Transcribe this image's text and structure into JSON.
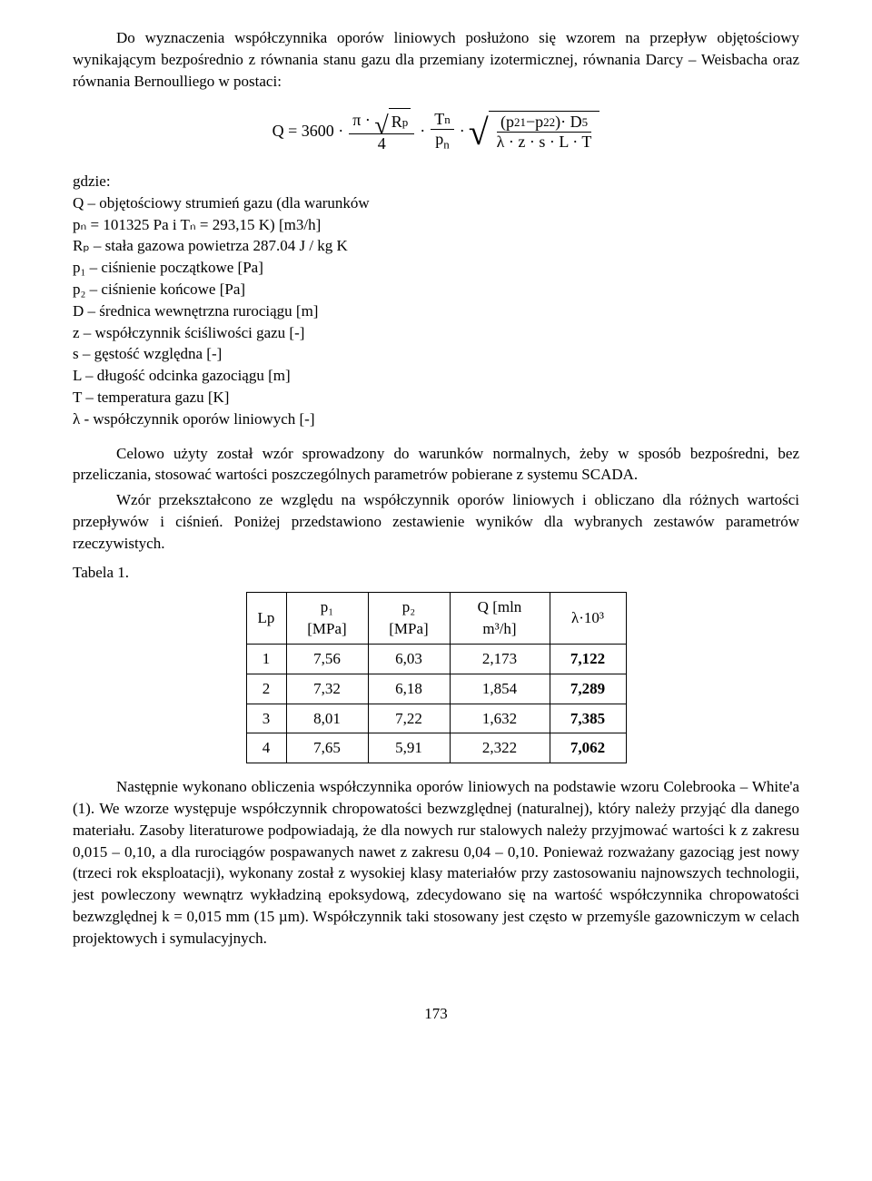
{
  "intro": {
    "p1": "Do wyznaczenia współczynnika oporów liniowych posłużono się wzorem na przepływ objętościowy wynikającym bezpośrednio z równania stanu gazu dla przemiany izotermicznej, równania Darcy – Weisbacha oraz równania Bernoulliego w postaci:"
  },
  "eq": {
    "lead": "Q = 3600 ·",
    "pi": "π ·",
    "Rp": "R",
    "Rp_sub": "p",
    "four": "4",
    "Tn": "T",
    "Tn_sub": "n",
    "pn": "p",
    "pn_sub": "n",
    "p1": "p",
    "p1_sup": "2",
    "p1_sub": "1",
    "minus": " − ",
    "p2": "p",
    "p2_sup": "2",
    "p2_sub": "2",
    "D5": "· D",
    "D5_sup": "5",
    "den2": "λ · z · s · L · T"
  },
  "where": {
    "gdzie": "gdzie:",
    "q": "Q – objętościowy strumień gazu (dla warunków",
    "pn_line": "pₙ = 101325 Pa i Tₙ = 293,15 K) [m3/h]",
    "rp": "Rₚ – stała gazowa powietrza 287.04 J / kg K",
    "p1": "p₁ – ciśnienie początkowe [Pa]",
    "p2": "p₂ – ciśnienie końcowe [Pa]",
    "d": "D – średnica wewnętrzna rurociągu [m]",
    "z": "z – współczynnik ściśliwości gazu [-]",
    "s": "s – gęstość względna [-]",
    "l": "L – długość odcinka gazociągu [m]",
    "t": "T – temperatura gazu [K]",
    "lambda": "λ - współczynnik oporów liniowych [-]"
  },
  "mid": {
    "p1": "Celowo użyty został wzór sprowadzony do warunków normalnych, żeby w sposób bezpośredni, bez przeliczania, stosować wartości poszczególnych parametrów pobierane z systemu SCADA.",
    "p2": "Wzór przekształcono ze względu na współczynnik oporów liniowych i obliczano dla różnych wartości przepływów i ciśnień. Poniżej przedstawiono zestawienie wyników dla wybranych zestawów parametrów rzeczywistych."
  },
  "table": {
    "caption": "Tabela 1.",
    "headers": {
      "lp": "Lp",
      "p1_a": "p₁",
      "p1_b": "[MPa]",
      "p2_a": "p₂",
      "p2_b": "[MPa]",
      "q_a": "Q [mln",
      "q_b": "m³/h]",
      "lambda": "λ·10³"
    },
    "rows": [
      {
        "lp": "1",
        "p1": "7,56",
        "p2": "6,03",
        "q": "2,173",
        "lambda": "7,122"
      },
      {
        "lp": "2",
        "p1": "7,32",
        "p2": "6,18",
        "q": "1,854",
        "lambda": "7,289"
      },
      {
        "lp": "3",
        "p1": "8,01",
        "p2": "7,22",
        "q": "1,632",
        "lambda": "7,385"
      },
      {
        "lp": "4",
        "p1": "7,65",
        "p2": "5,91",
        "q": "2,322",
        "lambda": "7,062"
      }
    ],
    "col_widths": {
      "lp": 44,
      "p1": 90,
      "p2": 90,
      "q": 110,
      "lambda": 84
    }
  },
  "after": {
    "p1": "Następnie wykonano obliczenia współczynnika oporów liniowych na podstawie wzoru Colebrooka – White'a (1). We wzorze występuje współczynnik chropowatości bezwzględnej (naturalnej), który należy przyjąć dla danego materiału. Zasoby literaturowe podpowiadają, że dla nowych rur stalowych należy przyjmować wartości k z zakresu 0,015 – 0,10, a dla rurociągów pospawanych nawet z zakresu 0,04 – 0,10. Ponieważ rozważany gazociąg jest nowy (trzeci rok eksploatacji), wykonany został z wysokiej klasy materiałów przy zastosowaniu najnowszych technologii, jest powleczony wewnątrz wykładziną epoksydową, zdecydowano się na wartość współczynnika chropowatości bezwzględnej k = 0,015 mm (15 µm). Współczynnik taki stosowany jest często w przemyśle gazowniczym w celach projektowych i symulacyjnych."
  },
  "page_num": "173",
  "colors": {
    "text": "#000000",
    "background": "#ffffff",
    "border": "#000000"
  }
}
